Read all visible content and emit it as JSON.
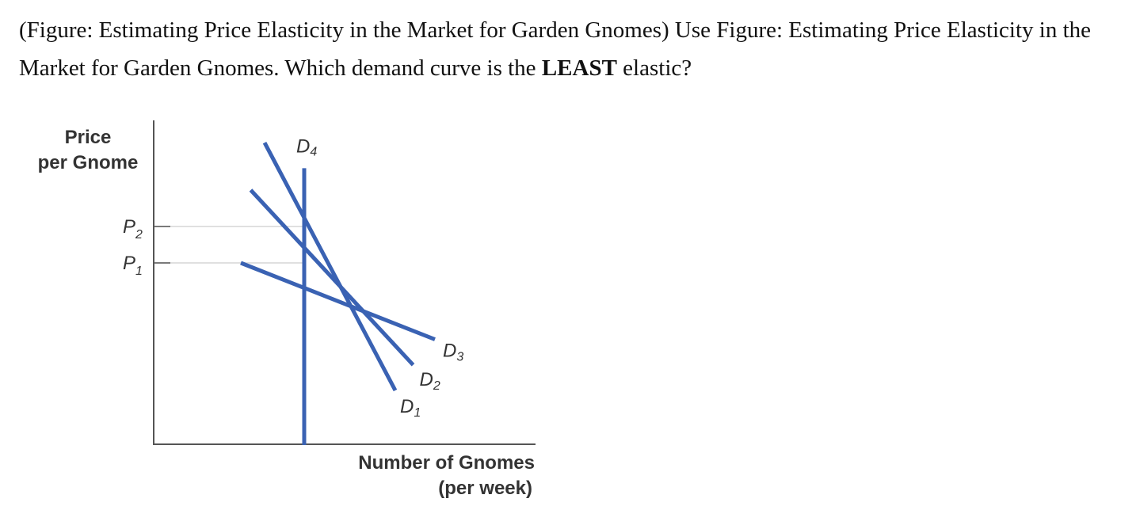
{
  "question": {
    "prefix": "(Figure: Estimating Price Elasticity in the Market for Garden Gnomes) Use Figure: Estimating Price Elasticity in the Market for Garden Gnomes. Which demand curve is the ",
    "emphasis": "LEAST",
    "suffix": " elastic?"
  },
  "chart_data": {
    "type": "line",
    "ylabel": [
      "Price",
      "per Gnome"
    ],
    "xlabel": [
      "Number of Gnomes",
      "(per week)"
    ],
    "y_ticks": [
      {
        "base": "P",
        "sub": "2",
        "y": 2
      },
      {
        "base": "P",
        "sub": "1",
        "y": 1
      }
    ],
    "series": [
      {
        "name": "D",
        "sub": "1",
        "points": [
          [
            -1,
            4.3
          ],
          [
            2.3,
            -2.5
          ]
        ]
      },
      {
        "name": "D",
        "sub": "2",
        "points": [
          [
            -1.35,
            3.0
          ],
          [
            2.75,
            -1.8
          ]
        ]
      },
      {
        "name": "D",
        "sub": "3",
        "points": [
          [
            -1.6,
            1.0
          ],
          [
            3.3,
            -1.1
          ]
        ]
      },
      {
        "name": "D",
        "sub": "4",
        "points": [
          [
            0,
            3.6
          ],
          [
            0,
            -4.0
          ]
        ]
      }
    ],
    "grid": false,
    "color": "#3a62b3"
  }
}
